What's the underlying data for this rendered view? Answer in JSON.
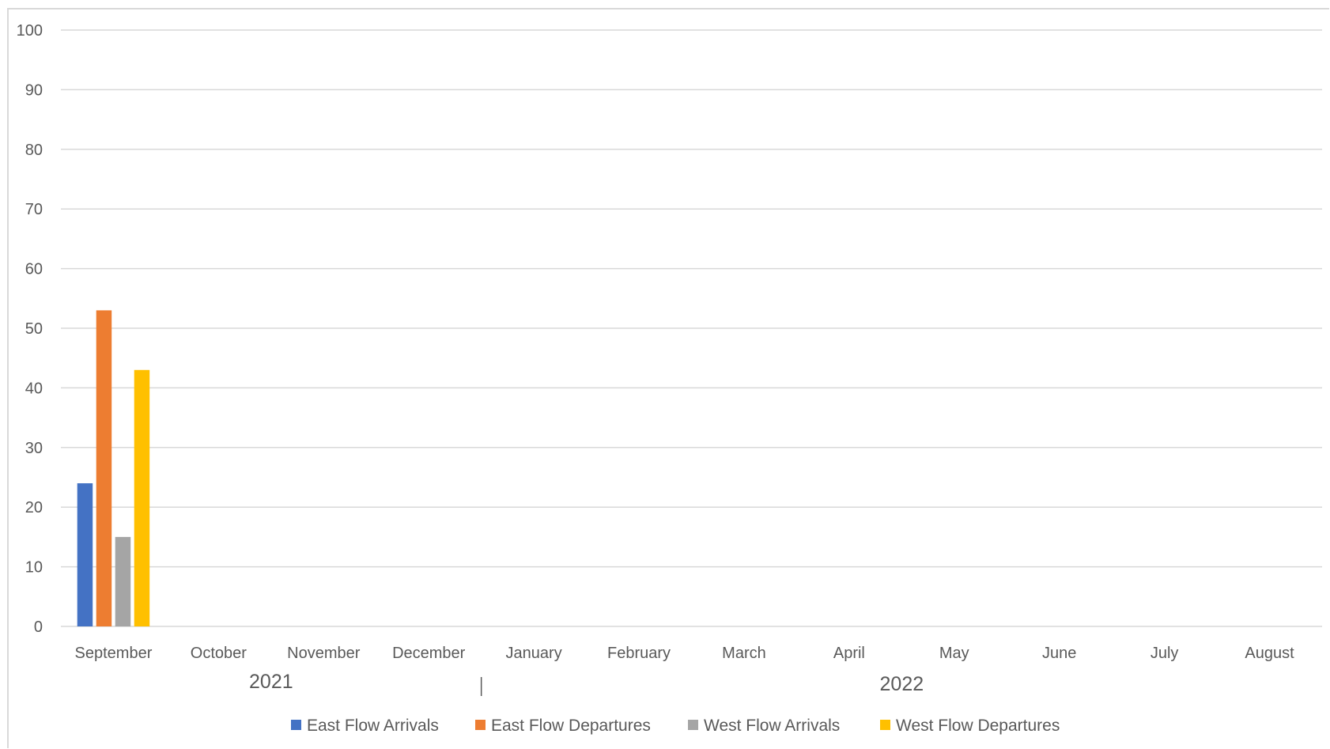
{
  "chart_data": {
    "type": "bar",
    "title": "",
    "xlabel": "",
    "ylabel": "",
    "ylim": [
      0,
      100
    ],
    "yticks": [
      0,
      10,
      20,
      30,
      40,
      50,
      60,
      70,
      80,
      90,
      100
    ],
    "grid": true,
    "legend_position": "bottom",
    "categories": [
      "September",
      "October",
      "November",
      "December",
      "January",
      "February",
      "March",
      "April",
      "May",
      "June",
      "July",
      "August"
    ],
    "year_groups": [
      {
        "label": "2021",
        "categories": [
          "September",
          "October",
          "November",
          "December"
        ]
      },
      {
        "label": "2022",
        "categories": [
          "January",
          "February",
          "March",
          "April",
          "May",
          "June",
          "July",
          "August"
        ]
      }
    ],
    "series": [
      {
        "name": "East Flow Arrivals",
        "color": "#4472c4",
        "values": [
          24,
          null,
          null,
          null,
          null,
          null,
          null,
          null,
          null,
          null,
          null,
          null
        ]
      },
      {
        "name": "East Flow Departures",
        "color": "#ed7d31",
        "values": [
          53,
          null,
          null,
          null,
          null,
          null,
          null,
          null,
          null,
          null,
          null,
          null
        ]
      },
      {
        "name": "West Flow Arrivals",
        "color": "#a5a5a5",
        "values": [
          15,
          null,
          null,
          null,
          null,
          null,
          null,
          null,
          null,
          null,
          null,
          null
        ]
      },
      {
        "name": "West Flow Departures",
        "color": "#ffc000",
        "values": [
          43,
          null,
          null,
          null,
          null,
          null,
          null,
          null,
          null,
          null,
          null,
          null
        ]
      }
    ]
  }
}
